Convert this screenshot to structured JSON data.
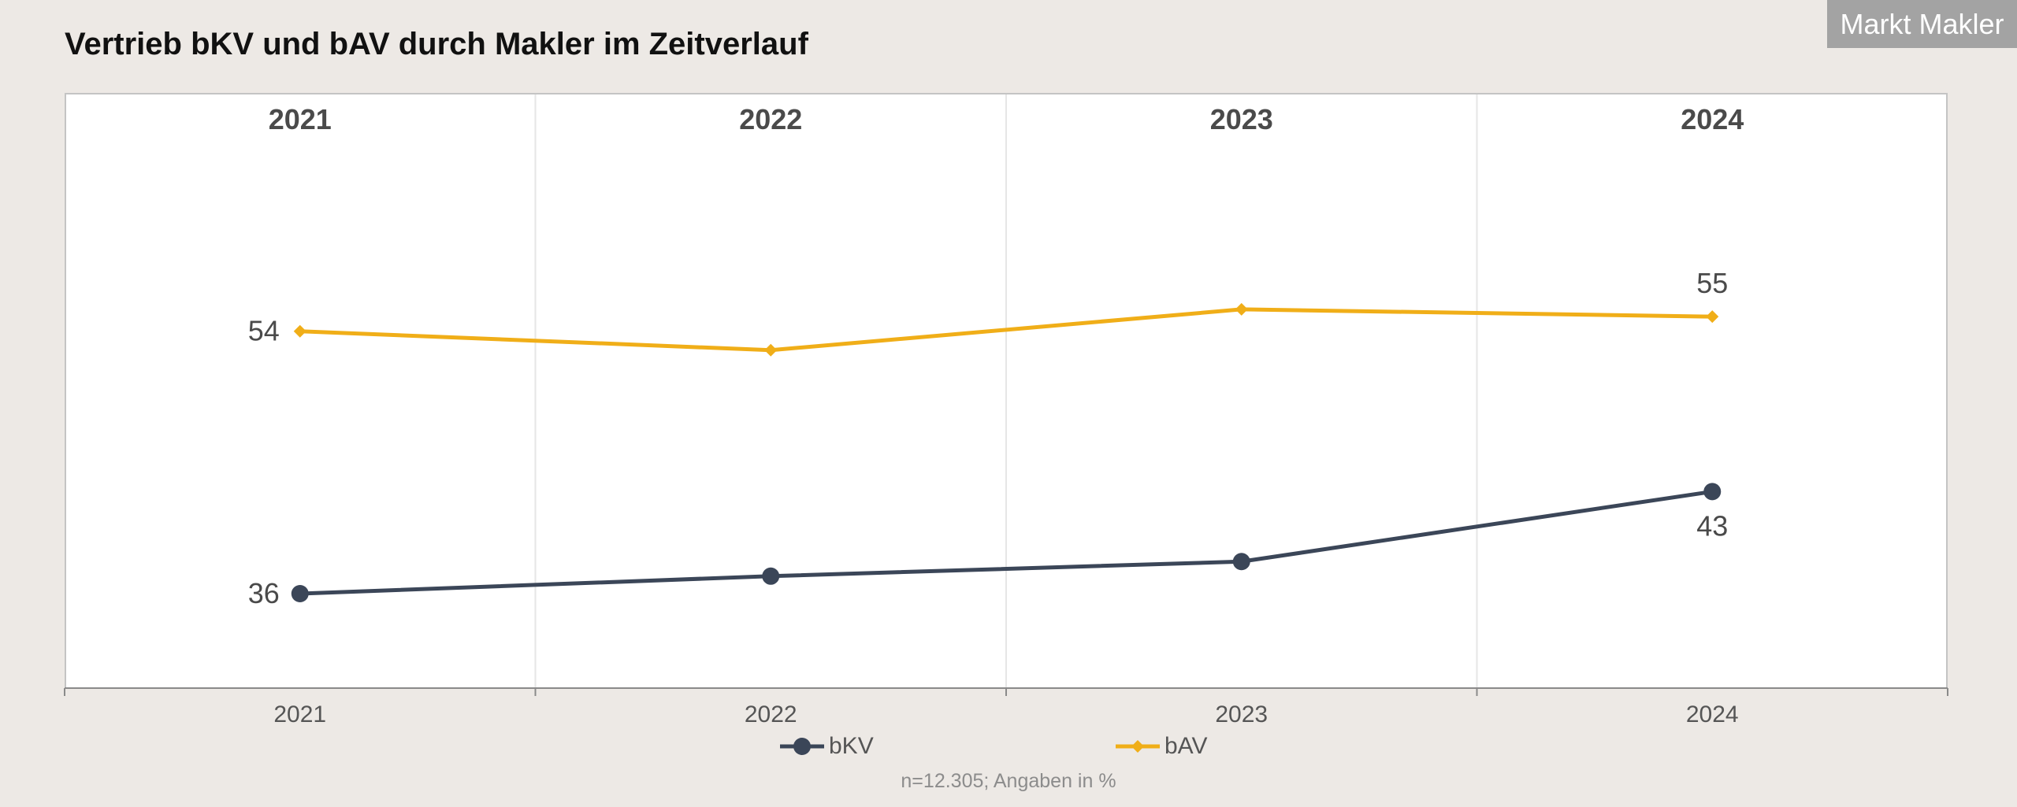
{
  "header": {
    "title": "Vertrieb bKV und bAV durch Makler im Zeitverlauf",
    "brand": "Markt Makler"
  },
  "note": "n=12.305; Angaben in %",
  "legend": {
    "items": [
      {
        "label": "bKV",
        "color": "#3b4658",
        "marker": "circle"
      },
      {
        "label": "bAV",
        "color": "#f0ae18",
        "marker": "diamond"
      }
    ]
  },
  "chart_data": {
    "type": "line",
    "title": "Vertrieb bKV und bAV durch Makler im Zeitverlauf",
    "categories": [
      "2021",
      "2022",
      "2023",
      "2024"
    ],
    "series": [
      {
        "name": "bKV",
        "values": [
          36,
          37.2,
          38.2,
          43
        ],
        "color": "#3b4658",
        "marker": "circle"
      },
      {
        "name": "bAV",
        "values": [
          54,
          52.7,
          55.5,
          55
        ],
        "color": "#f0ae18",
        "marker": "diamond"
      }
    ],
    "value_labels": [
      {
        "series": "bKV",
        "category": "2021",
        "text": "36",
        "placement": "left"
      },
      {
        "series": "bKV",
        "category": "2024",
        "text": "43",
        "placement": "below"
      },
      {
        "series": "bAV",
        "category": "2021",
        "text": "54",
        "placement": "left"
      },
      {
        "series": "bAV",
        "category": "2024",
        "text": "55",
        "placement": "above"
      }
    ],
    "xlabel": "",
    "ylabel": "",
    "ylim": [
      30,
      64
    ],
    "grid": "vertical",
    "legend": "bottom-center"
  }
}
